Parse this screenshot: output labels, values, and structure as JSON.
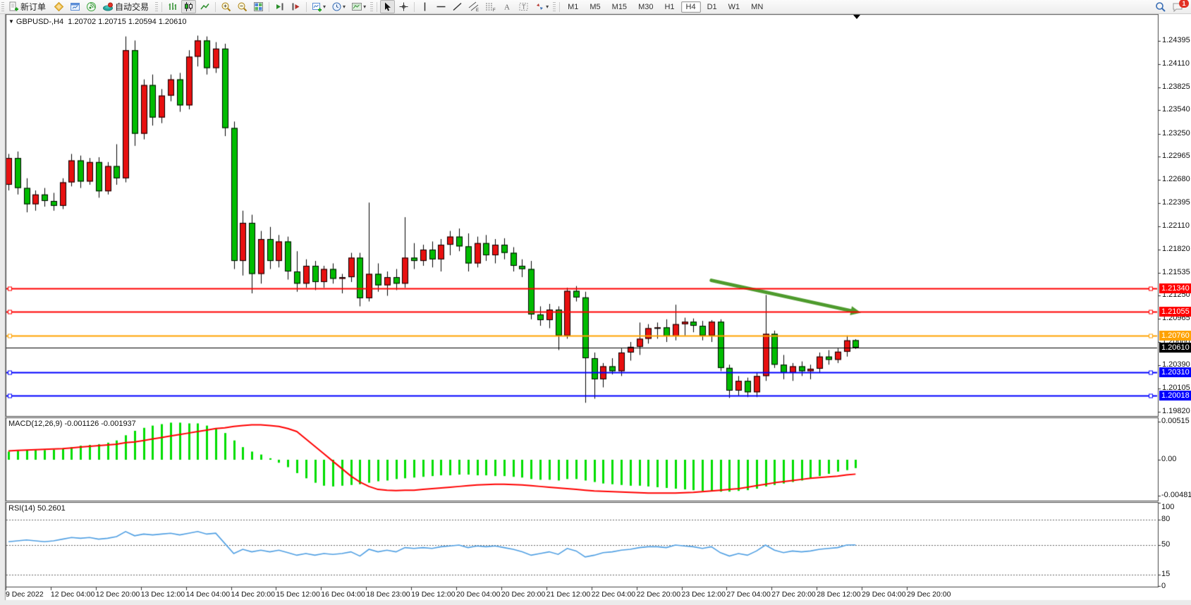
{
  "toolbar": {
    "new_order_label": "新订单",
    "algo_trading_label": "自动交易",
    "timeframes": [
      "M1",
      "M5",
      "M15",
      "M30",
      "H1",
      "H4",
      "D1",
      "W1",
      "MN"
    ],
    "active_timeframe": "H4",
    "notification_count": "1"
  },
  "chart": {
    "symbol_period": "GBPUSD-,H4",
    "ohlc_text": "1.20702 1.20715 1.20594 1.20610"
  },
  "indicators": {
    "macd_label": "MACD(12,26,9) -0.001126 -0.001937",
    "rsi_label": "RSI(14) 50.2601"
  },
  "colors": {
    "bull": "#e81010",
    "bear": "#00bc00",
    "macd_histogram": "#00de00",
    "macd_signal": "#ff0000",
    "rsi_line": "#4f9fe3",
    "arrow": "#4e9b2d",
    "line_red": "#ff0000",
    "line_orange": "#ffa200",
    "line_blue": "#0000ff",
    "line_black": "#000000"
  },
  "chart_data": {
    "type": "candlestick",
    "symbol": "GBPUSD-",
    "period": "H4",
    "current_ohlc": {
      "open": 1.20702,
      "high": 1.20715,
      "low": 1.20594,
      "close": 1.2061
    },
    "ylim": [
      1.1977,
      1.2473
    ],
    "price_axis_ticks": [
      1.24395,
      1.2411,
      1.23825,
      1.2354,
      1.2325,
      1.22965,
      1.2268,
      1.22395,
      1.2211,
      1.2182,
      1.21535,
      1.2125,
      1.20965,
      1.2068,
      1.2039,
      1.20105,
      1.1982
    ],
    "time_labels": [
      "9 Dec 2022",
      "12 Dec 04:00",
      "12 Dec 20:00",
      "13 Dec 12:00",
      "14 Dec 04:00",
      "14 Dec 20:00",
      "15 Dec 12:00",
      "16 Dec 04:00",
      "18 Dec 23:00",
      "19 Dec 12:00",
      "20 Dec 04:00",
      "20 Dec 20:00",
      "21 Dec 12:00",
      "22 Dec 04:00",
      "22 Dec 20:00",
      "23 Dec 12:00",
      "27 Dec 04:00",
      "27 Dec 20:00",
      "28 Dec 12:00",
      "29 Dec 04:00",
      "29 Dec 20:00"
    ],
    "candles_ohlc": [
      [
        1.2262,
        1.23,
        1.2255,
        1.2295
      ],
      [
        1.2295,
        1.2303,
        1.225,
        1.2258
      ],
      [
        1.2258,
        1.227,
        1.2228,
        1.2238
      ],
      [
        1.2238,
        1.2255,
        1.223,
        1.225
      ],
      [
        1.225,
        1.2258,
        1.2235,
        1.2242
      ],
      [
        1.2242,
        1.2252,
        1.223,
        1.2236
      ],
      [
        1.2236,
        1.227,
        1.2232,
        1.2265
      ],
      [
        1.2265,
        1.23,
        1.226,
        1.2292
      ],
      [
        1.2292,
        1.2298,
        1.2258,
        1.2266
      ],
      [
        1.2266,
        1.2295,
        1.2262,
        1.229
      ],
      [
        1.229,
        1.2296,
        1.2246,
        1.2254
      ],
      [
        1.2254,
        1.229,
        1.225,
        1.2285
      ],
      [
        1.2285,
        1.2312,
        1.2262,
        1.227
      ],
      [
        1.227,
        1.2445,
        1.2265,
        1.2428
      ],
      [
        1.2428,
        1.244,
        1.231,
        1.2325
      ],
      [
        1.2325,
        1.2392,
        1.2318,
        1.2385
      ],
      [
        1.2385,
        1.2398,
        1.2335,
        1.2345
      ],
      [
        1.2345,
        1.238,
        1.2338,
        1.2372
      ],
      [
        1.2372,
        1.2398,
        1.2365,
        1.2392
      ],
      [
        1.2392,
        1.24,
        1.2352,
        1.236
      ],
      [
        1.236,
        1.2428,
        1.2355,
        1.242
      ],
      [
        1.242,
        1.2446,
        1.2408,
        1.244
      ],
      [
        1.244,
        1.2445,
        1.2398,
        1.2406
      ],
      [
        1.2406,
        1.2438,
        1.24,
        1.243
      ],
      [
        1.243,
        1.2436,
        1.2322,
        1.2332
      ],
      [
        1.2332,
        1.234,
        1.2158,
        1.2168
      ],
      [
        1.2168,
        1.223,
        1.215,
        1.2215
      ],
      [
        1.2215,
        1.2225,
        1.2128,
        1.2152
      ],
      [
        1.2152,
        1.2205,
        1.214,
        1.2195
      ],
      [
        1.2195,
        1.221,
        1.2158,
        1.2168
      ],
      [
        1.2168,
        1.22,
        1.216,
        1.2192
      ],
      [
        1.2192,
        1.2198,
        1.2145,
        1.2155
      ],
      [
        1.2155,
        1.218,
        1.213,
        1.214
      ],
      [
        1.214,
        1.217,
        1.2135,
        1.2162
      ],
      [
        1.2162,
        1.2168,
        1.2132,
        1.2142
      ],
      [
        1.2142,
        1.2162,
        1.2135,
        1.2158
      ],
      [
        1.2158,
        1.2165,
        1.214,
        1.2146
      ],
      [
        1.2146,
        1.2152,
        1.2128,
        1.2148
      ],
      [
        1.2148,
        1.2178,
        1.2142,
        1.2172
      ],
      [
        1.2172,
        1.2178,
        1.2112,
        1.2122
      ],
      [
        1.2122,
        1.224,
        1.2118,
        1.2152
      ],
      [
        1.2152,
        1.2165,
        1.213,
        1.2138
      ],
      [
        1.2138,
        1.2155,
        1.2125,
        1.2148
      ],
      [
        1.2148,
        1.2158,
        1.2132,
        1.214
      ],
      [
        1.214,
        1.2222,
        1.2135,
        1.2172
      ],
      [
        1.2172,
        1.219,
        1.2158,
        1.2168
      ],
      [
        1.2168,
        1.2188,
        1.2162,
        1.2182
      ],
      [
        1.2182,
        1.2192,
        1.216,
        1.217
      ],
      [
        1.217,
        1.2195,
        1.2155,
        1.2188
      ],
      [
        1.2188,
        1.2205,
        1.2175,
        1.2198
      ],
      [
        1.2198,
        1.2208,
        1.218,
        1.2186
      ],
      [
        1.2186,
        1.2202,
        1.2155,
        1.2165
      ],
      [
        1.2165,
        1.2198,
        1.216,
        1.219
      ],
      [
        1.219,
        1.22,
        1.2168,
        1.2175
      ],
      [
        1.2175,
        1.2195,
        1.2165,
        1.2188
      ],
      [
        1.2188,
        1.2196,
        1.217,
        1.2178
      ],
      [
        1.2178,
        1.2185,
        1.2155,
        1.2162
      ],
      [
        1.2162,
        1.217,
        1.2148,
        1.2158
      ],
      [
        1.2158,
        1.2168,
        1.2096,
        1.2102
      ],
      [
        1.2102,
        1.2112,
        1.2088,
        1.2095
      ],
      [
        1.2095,
        1.2115,
        1.2085,
        1.2108
      ],
      [
        1.2108,
        1.2112,
        1.2058,
        1.2076
      ],
      [
        1.2076,
        1.2135,
        1.2072,
        1.2131
      ],
      [
        1.2131,
        1.2137,
        1.2118,
        1.2123
      ],
      [
        1.2123,
        1.213,
        1.1993,
        1.2048
      ],
      [
        1.2048,
        1.2055,
        1.1998,
        1.2022
      ],
      [
        1.2022,
        1.2042,
        1.2012,
        1.2038
      ],
      [
        1.2038,
        1.2048,
        1.2028,
        1.2032
      ],
      [
        1.2032,
        1.206,
        1.2026,
        1.2055
      ],
      [
        1.2055,
        1.2068,
        1.2045,
        1.2062
      ],
      [
        1.2062,
        1.2092,
        1.2052,
        1.2072
      ],
      [
        1.2072,
        1.209,
        1.2066,
        1.2085
      ],
      [
        1.2085,
        1.2092,
        1.2072,
        1.2086
      ],
      [
        1.2086,
        1.2096,
        1.2068,
        1.2075
      ],
      [
        1.2075,
        1.2114,
        1.207,
        1.209
      ],
      [
        1.209,
        1.2098,
        1.2076,
        1.2093
      ],
      [
        1.2093,
        1.2097,
        1.208,
        1.2088
      ],
      [
        1.2088,
        1.2094,
        1.207,
        1.2076
      ],
      [
        1.2076,
        1.2095,
        1.2068,
        1.2093
      ],
      [
        1.2093,
        1.2096,
        1.2032,
        1.2036
      ],
      [
        1.2036,
        1.204,
        1.1999,
        1.2008
      ],
      [
        1.2008,
        1.2026,
        1.2002,
        1.202
      ],
      [
        1.202,
        1.2024,
        1.2,
        1.2006
      ],
      [
        1.2006,
        1.203,
        1.2,
        1.2026
      ],
      [
        1.2026,
        1.2126,
        1.202,
        1.2078
      ],
      [
        1.2078,
        1.2082,
        1.2036,
        1.204
      ],
      [
        1.204,
        1.2052,
        1.2022,
        1.203
      ],
      [
        1.203,
        1.2042,
        1.202,
        1.2038
      ],
      [
        1.2038,
        1.2044,
        1.2026,
        1.2032
      ],
      [
        1.2032,
        1.204,
        1.2022,
        1.2035
      ],
      [
        1.2035,
        1.2055,
        1.203,
        1.205
      ],
      [
        1.205,
        1.2058,
        1.204,
        1.2046
      ],
      [
        1.2046,
        1.206,
        1.2042,
        1.2056
      ],
      [
        1.2056,
        1.2076,
        1.205,
        1.207
      ],
      [
        1.20702,
        1.20715,
        1.20594,
        1.2061
      ]
    ],
    "indicators": {
      "macd": {
        "params": "12,26,9",
        "last_main": -0.001126,
        "last_signal": -0.001937,
        "axis_ticks": [
          {
            "v": 0.00515,
            "label": "0.00515"
          },
          {
            "v": 0,
            "label": "0.00"
          },
          {
            "v": -0.004811,
            "label": "-0.004811"
          }
        ],
        "histogram": [
          0.0011,
          0.0012,
          0.00125,
          0.0013,
          0.0013,
          0.00135,
          0.0015,
          0.0017,
          0.0019,
          0.002,
          0.0021,
          0.0023,
          0.0026,
          0.0033,
          0.0039,
          0.0043,
          0.0046,
          0.0048,
          0.005,
          0.005,
          0.0049,
          0.0049,
          0.0046,
          0.0042,
          0.0036,
          0.0026,
          0.0017,
          0.0011,
          0.0007,
          0.0002,
          -0.0004,
          -0.001,
          -0.0018,
          -0.0025,
          -0.0031,
          -0.0035,
          -0.0036,
          -0.0035,
          -0.0034,
          -0.0033,
          -0.0031,
          -0.0029,
          -0.0028,
          -0.0026,
          -0.0025,
          -0.0024,
          -0.0023,
          -0.0022,
          -0.0021,
          -0.0021,
          -0.002,
          -0.002,
          -0.0021,
          -0.0021,
          -0.0022,
          -0.0022,
          -0.0023,
          -0.0024,
          -0.0026,
          -0.0027,
          -0.0027,
          -0.0028,
          -0.0026,
          -0.0026,
          -0.0028,
          -0.003,
          -0.0032,
          -0.0033,
          -0.0034,
          -0.0035,
          -0.0035,
          -0.0036,
          -0.0037,
          -0.0038,
          -0.0039,
          -0.004,
          -0.0041,
          -0.0042,
          -0.0042,
          -0.0043,
          -0.0043,
          -0.0042,
          -0.0041,
          -0.0039,
          -0.0036,
          -0.0034,
          -0.0032,
          -0.003,
          -0.0028,
          -0.0025,
          -0.0022,
          -0.0019,
          -0.0016,
          -0.0014,
          -0.001126
        ],
        "signal": [
          0.0012,
          0.00125,
          0.0013,
          0.00135,
          0.0014,
          0.00145,
          0.0015,
          0.0016,
          0.0017,
          0.0018,
          0.0019,
          0.002,
          0.0021,
          0.0023,
          0.0024,
          0.0026,
          0.0028,
          0.003,
          0.0032,
          0.0034,
          0.0036,
          0.0038,
          0.004,
          0.0042,
          0.0043,
          0.0045,
          0.0046,
          0.0047,
          0.0047,
          0.0046,
          0.0045,
          0.0042,
          0.0038,
          0.0028,
          0.0018,
          0.0008,
          -0.0002,
          -0.0012,
          -0.0022,
          -0.003,
          -0.0036,
          -0.004,
          -0.0041,
          -0.00415,
          -0.0041,
          -0.0041,
          -0.004,
          -0.0039,
          -0.0038,
          -0.0037,
          -0.0036,
          -0.0035,
          -0.0034,
          -0.00335,
          -0.0033,
          -0.0033,
          -0.00335,
          -0.0034,
          -0.0035,
          -0.0036,
          -0.0037,
          -0.0038,
          -0.0039,
          -0.004,
          -0.0041,
          -0.0042,
          -0.00425,
          -0.0043,
          -0.00435,
          -0.0044,
          -0.00445,
          -0.0045,
          -0.0045,
          -0.0045,
          -0.0045,
          -0.00445,
          -0.0044,
          -0.0043,
          -0.0042,
          -0.0041,
          -0.004,
          -0.0039,
          -0.0037,
          -0.0035,
          -0.0033,
          -0.0031,
          -0.00295,
          -0.0028,
          -0.00265,
          -0.0025,
          -0.0024,
          -0.0023,
          -0.0022,
          -0.00205,
          -0.001937
        ]
      },
      "rsi": {
        "period": 14,
        "last": 50.2601,
        "levels": [
          80,
          50,
          15
        ],
        "axis_ticks": [
          {
            "v": 100,
            "label": "100"
          },
          {
            "v": 80,
            "label": "80"
          },
          {
            "v": 50,
            "label": "50"
          },
          {
            "v": 15,
            "label": "15"
          },
          {
            "v": 0,
            "label": "0"
          }
        ],
        "values": [
          54,
          55,
          56,
          55,
          54,
          55,
          57,
          59,
          58,
          59,
          57,
          58,
          60,
          66,
          61,
          63,
          62,
          63,
          64,
          62,
          64,
          66,
          63,
          64,
          52,
          40,
          45,
          42,
          44,
          42,
          44,
          41,
          38,
          40,
          38,
          40,
          39,
          40,
          42,
          37,
          45,
          42,
          44,
          42,
          47,
          46,
          47,
          46,
          48,
          49,
          50,
          47,
          49,
          48,
          49,
          47,
          45,
          42,
          38,
          40,
          42,
          39,
          46,
          43,
          36,
          38,
          41,
          42,
          44,
          45,
          47,
          48,
          48,
          47,
          50,
          49,
          48,
          46,
          48,
          41,
          37,
          40,
          38,
          43,
          50,
          44,
          41,
          43,
          42,
          43,
          45,
          46,
          47,
          50,
          50.26
        ]
      }
    },
    "horizontal_lines": [
      {
        "price": 1.2134,
        "label": "1.21340",
        "color": "#ff0000"
      },
      {
        "price": 1.21055,
        "label": "1.21055",
        "color": "#ff0000"
      },
      {
        "price": 1.2076,
        "label": "1.20760",
        "color": "#ffa200"
      },
      {
        "price": 1.2031,
        "label": "1.20310",
        "color": "#0000ff"
      },
      {
        "price": 1.20018,
        "label": "1.20018",
        "color": "#0000ff"
      }
    ],
    "current_price_line": {
      "price": 1.2061,
      "label": "1.20610",
      "color": "#000000"
    },
    "trend_arrow": {
      "from_bar": 78,
      "from_price": 1.2144,
      "to_bar": 94.6,
      "to_price": 1.2104
    }
  }
}
